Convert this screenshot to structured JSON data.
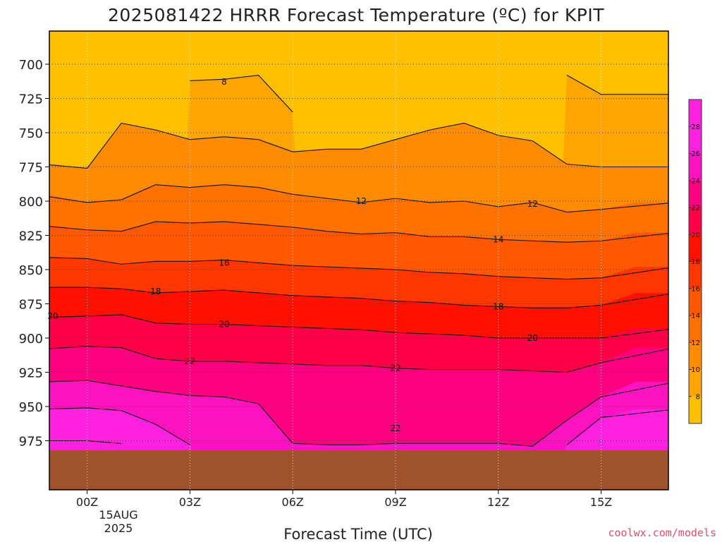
{
  "title": "2025081422 HRRR Forecast Temperature (ºC) for KPIT",
  "xlabel": "Forecast Time (UTC)",
  "credit": "coolwx.com/models",
  "date_label": [
    "15AUG",
    "2025"
  ],
  "colors": {
    "bands": [
      "#ffc000",
      "#ffa400",
      "#ff8c00",
      "#ff7200",
      "#ff5800",
      "#ff3600",
      "#ff1000",
      "#ff0046",
      "#ff0080",
      "#ff12c0",
      "#ff20e0"
    ],
    "ground": "#a0522d",
    "frame": "#000000"
  },
  "chart_data": {
    "type": "contour",
    "variable": "Temperature (ºC)",
    "contour_interval": 2,
    "x": [
      "-01Z",
      "00Z",
      "01Z",
      "02Z",
      "03Z",
      "04Z",
      "05Z",
      "06Z",
      "07Z",
      "08Z",
      "09Z",
      "10Z",
      "11Z",
      "12Z",
      "13Z",
      "14Z",
      "15Z",
      "16Z"
    ],
    "x_tick_labels": [
      "00Z",
      "03Z",
      "06Z",
      "09Z",
      "12Z",
      "15Z"
    ],
    "y_levels_hPa": [
      700,
      725,
      750,
      775,
      800,
      825,
      850,
      875,
      900,
      925,
      950,
      975
    ],
    "ylim": [
      681,
      985
    ],
    "colorbar": {
      "ticks": [
        8,
        10,
        12,
        14,
        16,
        18,
        20,
        22,
        24,
        26,
        28
      ],
      "range": [
        6,
        30
      ]
    },
    "isotherms": [
      {
        "value": 8,
        "pressure_hPa": [
          null,
          null,
          null,
          null,
          712,
          711,
          708,
          735,
          null,
          null,
          null,
          null,
          null,
          null,
          null,
          708,
          722,
          722
        ]
      },
      {
        "value": 10,
        "pressure_hPa": [
          773,
          776,
          743,
          748,
          755,
          753,
          755,
          764,
          762,
          762,
          755,
          748,
          743,
          752,
          756,
          773,
          775,
          775
        ]
      },
      {
        "value": 12,
        "pressure_hPa": [
          796,
          801,
          799,
          788,
          790,
          788,
          790,
          795,
          798,
          801,
          798,
          801,
          800,
          804,
          801,
          808,
          806,
          801
        ]
      },
      {
        "value": 14,
        "pressure_hPa": [
          818,
          821,
          822,
          815,
          816,
          815,
          817,
          819,
          822,
          824,
          823,
          826,
          826,
          828,
          829,
          830,
          829,
          823
        ]
      },
      {
        "value": 16,
        "pressure_hPa": [
          841,
          842,
          846,
          844,
          844,
          843,
          845,
          847,
          848,
          849,
          850,
          852,
          853,
          855,
          856,
          857,
          856,
          848
        ]
      },
      {
        "value": 18,
        "pressure_hPa": [
          863,
          863,
          864,
          867,
          866,
          865,
          867,
          869,
          870,
          871,
          873,
          874,
          876,
          877,
          878,
          878,
          876,
          867
        ]
      },
      {
        "value": 20,
        "pressure_hPa": [
          885,
          884,
          883,
          889,
          890,
          890,
          891,
          892,
          893,
          894,
          896,
          897,
          898,
          900,
          900,
          900,
          900,
          893
        ]
      },
      {
        "value": 22,
        "pressure_hPa": [
          908,
          906,
          907,
          915,
          917,
          917,
          918,
          919,
          920,
          920,
          922,
          923,
          923,
          923,
          924,
          925,
          918,
          907
        ]
      },
      {
        "value": 24,
        "pressure_hPa": [
          932,
          931,
          935,
          939,
          942,
          943,
          948,
          977,
          978,
          978,
          977,
          977,
          977,
          977,
          979,
          960,
          943,
          932
        ]
      },
      {
        "value": 26,
        "pressure_hPa": [
          952,
          951,
          953,
          963,
          978,
          null,
          null,
          null,
          null,
          null,
          null,
          null,
          null,
          null,
          null,
          978,
          958,
          952
        ]
      },
      {
        "value": 28,
        "pressure_hPa": [
          975,
          975,
          977,
          null,
          null,
          null,
          null,
          null,
          null,
          null,
          null,
          null,
          null,
          null,
          null,
          null,
          null,
          976
        ]
      }
    ],
    "labels_shown": [
      {
        "text": "8",
        "x": "04Z",
        "p": 713
      },
      {
        "text": "12",
        "x": "08Z",
        "p": 800
      },
      {
        "text": "12",
        "x": "13Z",
        "p": 802
      },
      {
        "text": "14",
        "x": "12Z",
        "p": 828
      },
      {
        "text": "16",
        "x": "04Z",
        "p": 845
      },
      {
        "text": "18",
        "x": "02Z",
        "p": 866
      },
      {
        "text": "18",
        "x": "12Z",
        "p": 877
      },
      {
        "text": "20",
        "x": "-01Z",
        "p": 884
      },
      {
        "text": "20",
        "x": "04Z",
        "p": 890
      },
      {
        "text": "20",
        "x": "13Z",
        "p": 900
      },
      {
        "text": "22",
        "x": "03Z",
        "p": 917
      },
      {
        "text": "22",
        "x": "09Z",
        "p": 922
      },
      {
        "text": "22",
        "x": "09Z",
        "p": 966
      }
    ],
    "ground_top_hPa": 982
  }
}
